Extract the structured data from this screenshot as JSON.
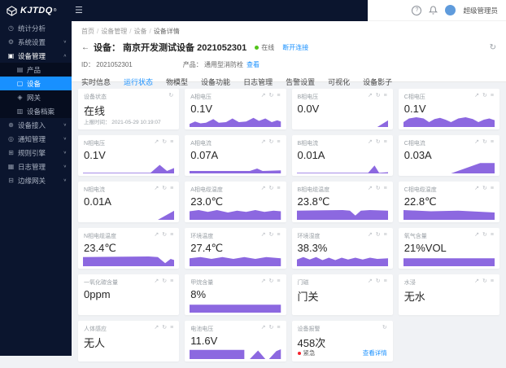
{
  "header": {
    "logo_text": "KJTDQ",
    "logo_reg": "®",
    "user_name": "超级管理员"
  },
  "sidebar": {
    "items": [
      {
        "key": "statistics",
        "label": "统计分析",
        "icon": "statistics",
        "arrow": false
      },
      {
        "key": "system-settings",
        "label": "系统设置",
        "icon": "settings",
        "arrow": true
      },
      {
        "key": "device-management",
        "label": "设备管理",
        "icon": "device-management",
        "arrow": true,
        "open": true
      },
      {
        "key": "product",
        "label": "产品",
        "icon": "product",
        "sub": true
      },
      {
        "key": "device",
        "label": "设备",
        "icon": "device",
        "sub": true,
        "selected": true
      },
      {
        "key": "gateway",
        "label": "网关",
        "icon": "gateway",
        "sub": true
      },
      {
        "key": "device-archive",
        "label": "设备档案",
        "icon": "archive",
        "sub": true
      },
      {
        "key": "device-access",
        "label": "设备接入",
        "icon": "access",
        "arrow": true
      },
      {
        "key": "notification",
        "label": "通知管理",
        "icon": "notification",
        "arrow": true
      },
      {
        "key": "rule-engine",
        "label": "规则引擎",
        "icon": "rule",
        "arrow": true
      },
      {
        "key": "log-management",
        "label": "日志管理",
        "icon": "log",
        "arrow": true
      },
      {
        "key": "edge-gateway",
        "label": "边缘网关",
        "icon": "edge",
        "arrow": true
      }
    ]
  },
  "breadcrumb": {
    "items": [
      "首页",
      "设备管理",
      "设备",
      "设备详情"
    ],
    "separator": "/"
  },
  "device": {
    "back_arrow": "←",
    "title": "设备： 南京开发测试设备 2021052301",
    "status": "在线",
    "disconnect_link": "断开连接",
    "id_text": "ID： 2021052301",
    "product_label": "产品： 通用型消防栓",
    "product_link": "查看"
  },
  "tabs": {
    "active": "运行状态",
    "items": [
      {
        "key": "realtime-info",
        "label": "实时信息"
      },
      {
        "key": "running-status",
        "label": "运行状态"
      },
      {
        "key": "thing-model",
        "label": "物模型"
      },
      {
        "key": "device-function",
        "label": "设备功能"
      },
      {
        "key": "log-management",
        "label": "日志管理"
      },
      {
        "key": "alarm-settings",
        "label": "告警设置"
      },
      {
        "key": "visualization",
        "label": "可视化"
      },
      {
        "key": "device-shadow",
        "label": "设备影子"
      }
    ]
  },
  "cards": [
    {
      "label": "设备状态",
      "value": "在线",
      "sub": "上报时间： 2021-05-29 10:19:07",
      "icons": [
        "refresh"
      ]
    },
    {
      "label": "A相电压",
      "value": "0.1V",
      "spark": "waves",
      "icons": [
        "trend",
        "refresh",
        "more"
      ]
    },
    {
      "label": "B相电压",
      "value": "0.0V",
      "spark": "tri-right-sm",
      "icons": [
        "trend",
        "refresh",
        "more"
      ]
    },
    {
      "label": "C相电压",
      "value": "0.1V",
      "spark": "humps",
      "icons": [
        "trend",
        "refresh",
        "more"
      ]
    },
    {
      "label": "N相电压",
      "value": "0.1V",
      "spark": "peak-right",
      "icons": [
        "trend",
        "refresh",
        "more"
      ]
    },
    {
      "label": "A相电流",
      "value": "0.07A",
      "spark": "low-flat",
      "icons": [
        "trend",
        "refresh",
        "more"
      ]
    },
    {
      "label": "B相电流",
      "value": "0.01A",
      "spark": "spike-right",
      "icons": [
        "trend",
        "refresh",
        "more"
      ]
    },
    {
      "label": "C相电流",
      "value": "0.03A",
      "spark": "ramp-right",
      "icons": [
        "trend",
        "refresh",
        "more"
      ]
    },
    {
      "label": "N相电流",
      "value": "0.01A",
      "spark": "tri-right",
      "icons": [
        "trend",
        "refresh",
        "more"
      ]
    },
    {
      "label": "A相电缆温度",
      "value": "23.0℃",
      "spark": "bar-wavy",
      "icons": [
        "trend",
        "refresh",
        "more"
      ]
    },
    {
      "label": "B相电缆温度",
      "value": "23.8℃",
      "spark": "bar-notch",
      "icons": [
        "trend",
        "refresh",
        "more"
      ]
    },
    {
      "label": "C相电缆温度",
      "value": "22.8℃",
      "spark": "bar-slope",
      "icons": [
        "trend",
        "refresh",
        "more"
      ]
    },
    {
      "label": "N相电缆温度",
      "value": "23.4℃",
      "spark": "bar-dip-right",
      "icons": [
        "trend",
        "refresh",
        "more"
      ]
    },
    {
      "label": "环境温度",
      "value": "27.4℃",
      "spark": "bar-wavy2",
      "icons": [
        "trend",
        "refresh",
        "more"
      ]
    },
    {
      "label": "环境湿度",
      "value": "38.3%",
      "spark": "bar-zigzag",
      "icons": [
        "trend",
        "refresh",
        "more"
      ]
    },
    {
      "label": "氧气含量",
      "value": "21%VOL",
      "spark": "bar-flat",
      "icons": [
        "trend",
        "refresh",
        "more"
      ]
    },
    {
      "label": "一氧化碳含量",
      "value": "0ppm",
      "icons": [
        "trend",
        "refresh",
        "more"
      ]
    },
    {
      "label": "甲烷含量",
      "value": "8%",
      "spark": "bar-flat",
      "icons": [
        "trend",
        "refresh",
        "more"
      ]
    },
    {
      "label": "门磁",
      "value": "门关",
      "icons": [
        "trend",
        "refresh",
        "more"
      ]
    },
    {
      "label": "水浸",
      "value": "无水",
      "icons": [
        "trend",
        "refresh",
        "more"
      ]
    },
    {
      "label": "人体感应",
      "value": "无人",
      "icons": [
        "trend",
        "refresh",
        "more"
      ]
    },
    {
      "label": "电池电压",
      "value": "11.6V",
      "spark": "bar-tris",
      "icons": [
        "trend",
        "refresh",
        "more"
      ]
    },
    {
      "label": "设备报警",
      "value": "458次",
      "alarm_level": "紧急",
      "detail_link": "查看详情",
      "icons": [
        "refresh"
      ]
    }
  ],
  "colors": {
    "accent": "#1890ff",
    "chart_purple": "#8c68e0",
    "online_green": "#52c41a",
    "alarm_red": "#f5222d",
    "sidebar_bg": "#0b152e"
  }
}
